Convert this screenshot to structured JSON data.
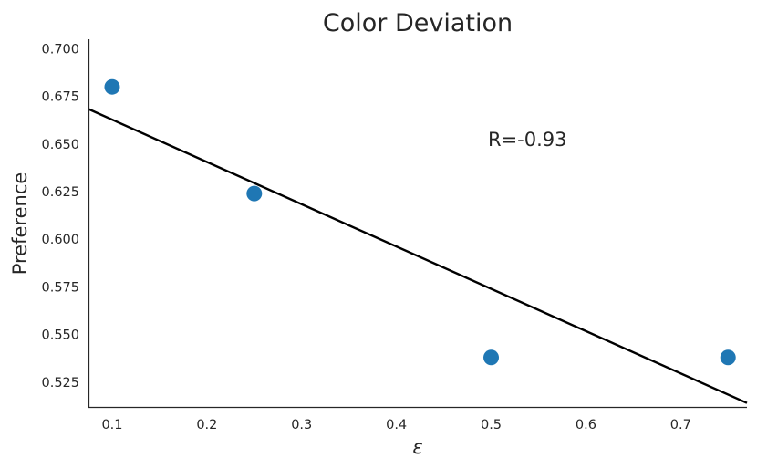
{
  "chart_data": {
    "type": "scatter",
    "title": "Color Deviation",
    "xlabel": "ε",
    "ylabel": "Preference",
    "xlim": [
      0.075,
      0.77
    ],
    "ylim": [
      0.512,
      0.705
    ],
    "x_ticks": [
      0.1,
      0.2,
      0.3,
      0.4,
      0.5,
      0.6,
      0.7
    ],
    "x_tick_labels": [
      "0.1",
      "0.2",
      "0.3",
      "0.4",
      "0.5",
      "0.6",
      "0.7"
    ],
    "y_ticks": [
      0.525,
      0.55,
      0.575,
      0.6,
      0.625,
      0.65,
      0.675,
      0.7
    ],
    "y_tick_labels": [
      "0.525",
      "0.550",
      "0.575",
      "0.600",
      "0.625",
      "0.650",
      "0.675",
      "0.700"
    ],
    "points": [
      {
        "x": 0.1,
        "y": 0.68
      },
      {
        "x": 0.25,
        "y": 0.624
      },
      {
        "x": 0.5,
        "y": 0.538
      },
      {
        "x": 0.75,
        "y": 0.538
      }
    ],
    "trend_line": {
      "slope": -0.222,
      "intercept": 0.685
    },
    "annotation": {
      "text": "R=-0.93",
      "x": 0.5,
      "y": 0.651
    },
    "grid": false,
    "colors": {
      "points": "#1f77b4",
      "line": "#000000",
      "axes": "#262626"
    }
  }
}
